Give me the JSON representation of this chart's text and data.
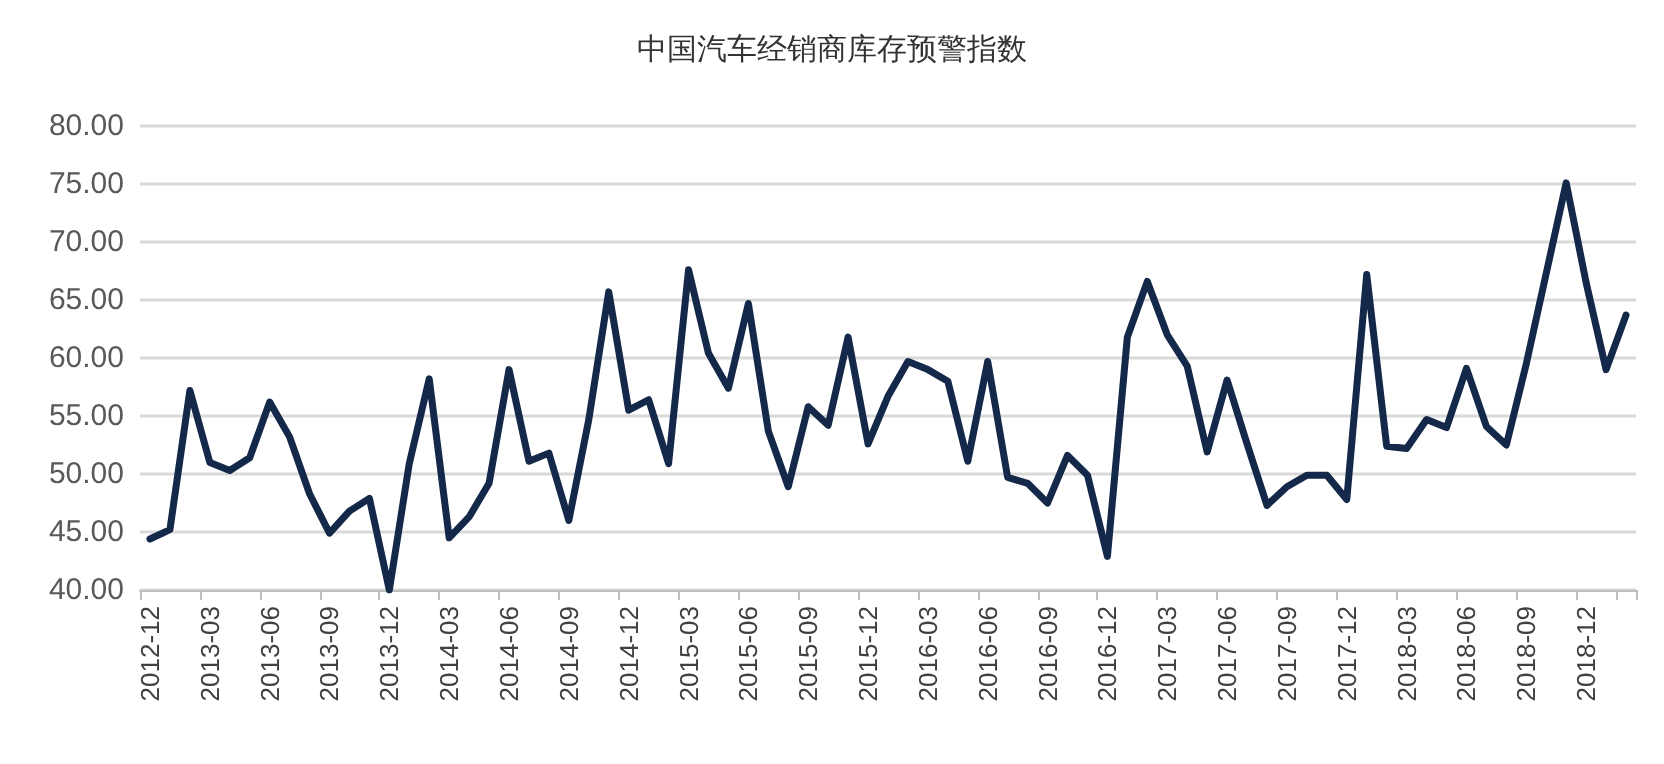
{
  "chart_data": {
    "type": "line",
    "title": "中国汽车经销商库存预警指数",
    "categories": [
      "2012-12",
      null,
      null,
      "2013-03",
      null,
      null,
      "2013-06",
      null,
      null,
      "2013-09",
      null,
      null,
      "2013-12",
      null,
      null,
      "2014-03",
      null,
      null,
      "2014-06",
      null,
      null,
      "2014-09",
      null,
      null,
      "2014-12",
      null,
      null,
      "2015-03",
      null,
      null,
      "2015-06",
      null,
      null,
      "2015-09",
      null,
      null,
      "2015-12",
      null,
      null,
      "2016-03",
      null,
      null,
      "2016-06",
      null,
      null,
      "2016-09",
      null,
      null,
      "2016-12",
      null,
      null,
      "2017-03",
      null,
      null,
      "2017-06",
      null,
      null,
      "2017-09",
      null,
      null,
      "2017-12",
      null,
      null,
      "2018-03",
      null,
      null,
      "2018-06",
      null,
      null,
      "2018-09",
      null,
      null,
      "2018-12",
      null,
      null
    ],
    "series": [
      {
        "color": "#14284a",
        "values": [
          44.4,
          45.2,
          57.2,
          51.0,
          50.3,
          51.4,
          56.2,
          53.2,
          48.3,
          44.9,
          46.8,
          47.9,
          40.0,
          50.9,
          58.2,
          44.5,
          46.3,
          49.2,
          59.0,
          51.1,
          51.8,
          46.0,
          54.7,
          65.7,
          55.5,
          56.4,
          50.9,
          67.6,
          60.4,
          57.4,
          64.7,
          53.7,
          48.9,
          55.8,
          54.2,
          61.8,
          52.6,
          56.7,
          59.7,
          59.0,
          58.0,
          51.1,
          59.7,
          49.7,
          49.2,
          47.5,
          51.6,
          49.9,
          42.9,
          61.8,
          66.6,
          62.0,
          59.3,
          51.9,
          58.1,
          52.6,
          47.3,
          48.9,
          49.9,
          49.9,
          47.8,
          67.2,
          52.4,
          52.2,
          54.7,
          54.0,
          59.1,
          54.1,
          52.5,
          59.5,
          67.3,
          75.1,
          66.5,
          59.0,
          63.7
        ]
      }
    ],
    "ylim": [
      40,
      80
    ],
    "yticks": [
      {
        "value": 40,
        "label": "40.00"
      },
      {
        "value": 45,
        "label": "45.00"
      },
      {
        "value": 50,
        "label": "50.00"
      },
      {
        "value": 55,
        "label": "55.00"
      },
      {
        "value": 60,
        "label": "60.00"
      },
      {
        "value": 65,
        "label": "65.00"
      },
      {
        "value": 70,
        "label": "70.00"
      },
      {
        "value": 75,
        "label": "75.00"
      },
      {
        "value": 80,
        "label": "80.00"
      }
    ],
    "grid": "y",
    "marker": "none",
    "line_style": "solid"
  }
}
